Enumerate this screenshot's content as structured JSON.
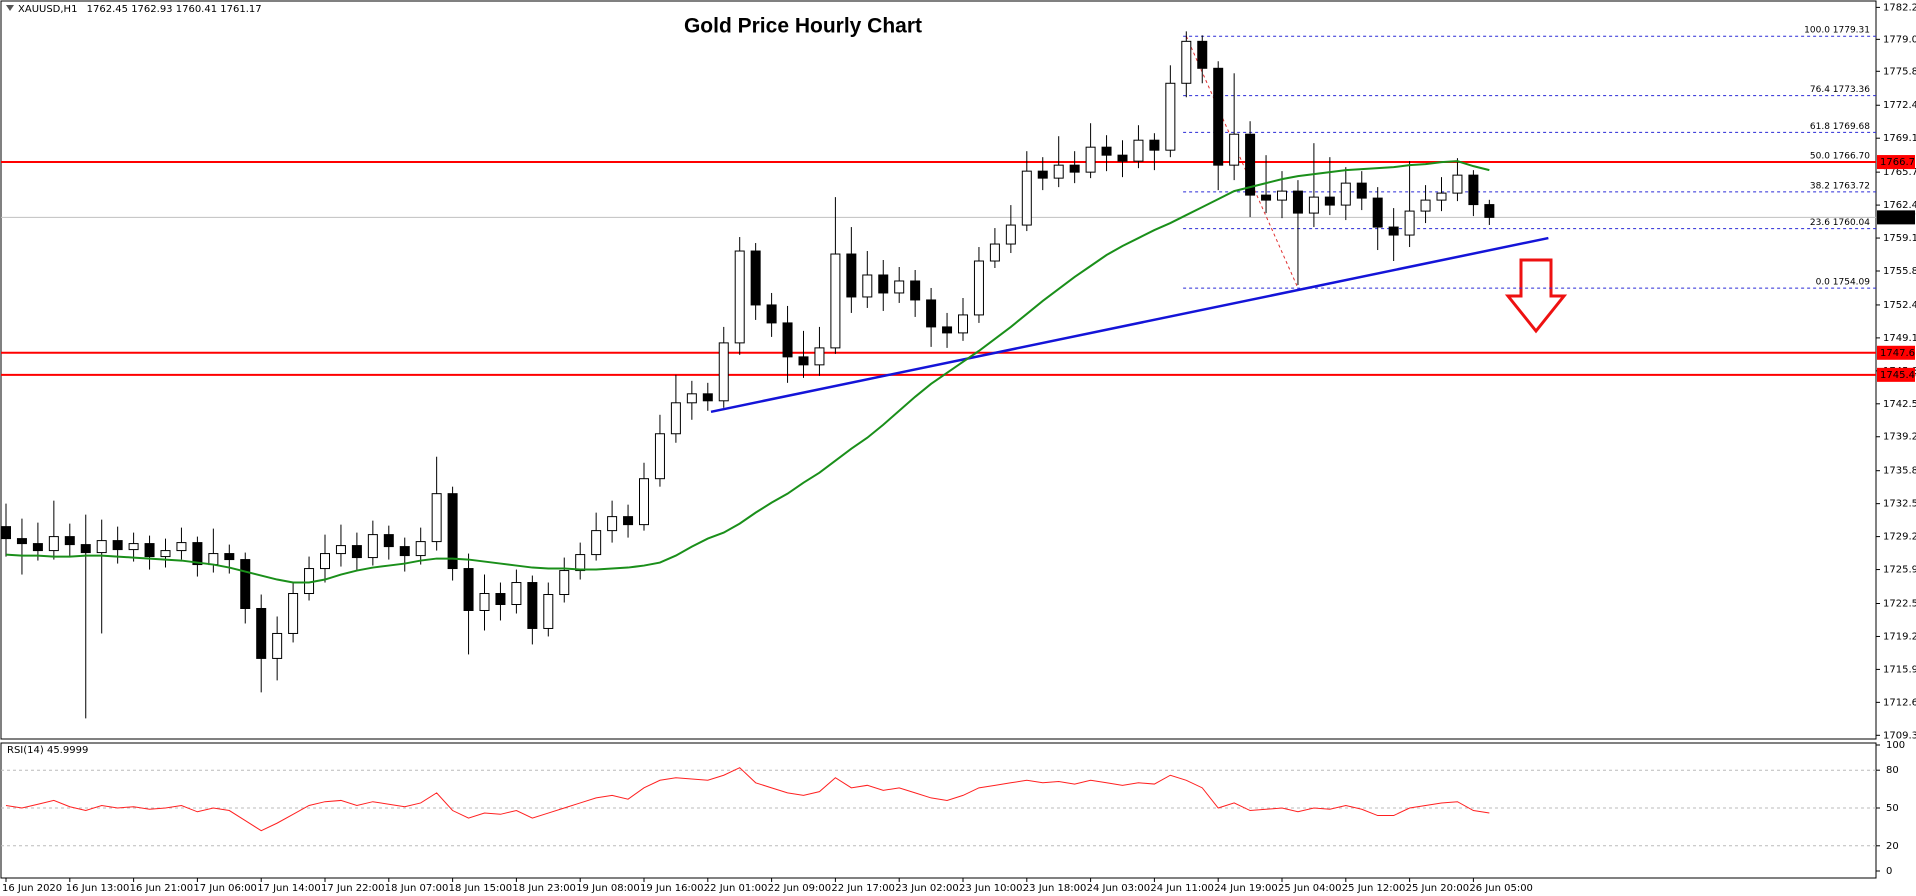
{
  "chart_data": {
    "type": "candlestick",
    "title": "Gold Price Hourly Chart",
    "symbol": "XAUUSD,H1",
    "ohlc": [
      1762.45,
      1762.93,
      1760.41,
      1761.17
    ],
    "bull_color": "#ffffff",
    "bear_color": "#000000",
    "candles": [
      [
        1730.2,
        1732.5,
        1727.2,
        1729
      ],
      [
        1729,
        1731,
        1725.4,
        1728.5
      ],
      [
        1728.5,
        1730.6,
        1726.8,
        1727.8
      ],
      [
        1727.8,
        1732.8,
        1726.9,
        1729.2
      ],
      [
        1729.2,
        1730.5,
        1727.2,
        1728.4
      ],
      [
        1728.4,
        1731.4,
        1711,
        1727.6
      ],
      [
        1727.6,
        1730.9,
        1719.5,
        1728.8
      ],
      [
        1728.8,
        1730.2,
        1726.5,
        1727.9
      ],
      [
        1727.9,
        1729.6,
        1726.7,
        1728.5
      ],
      [
        1728.5,
        1729.3,
        1725.9,
        1727.2
      ],
      [
        1727.2,
        1729,
        1726.1,
        1727.8
      ],
      [
        1727.8,
        1730.1,
        1726.9,
        1728.6
      ],
      [
        1728.6,
        1729.2,
        1725.2,
        1726.4
      ],
      [
        1726.4,
        1730,
        1725.6,
        1727.5
      ],
      [
        1727.5,
        1728.4,
        1725.5,
        1726.9
      ],
      [
        1726.9,
        1727.6,
        1720.5,
        1722
      ],
      [
        1722,
        1723.4,
        1713.6,
        1717
      ],
      [
        1717,
        1721.2,
        1714.8,
        1719.5
      ],
      [
        1719.5,
        1724.6,
        1718.6,
        1723.5
      ],
      [
        1723.5,
        1727.2,
        1722.8,
        1726
      ],
      [
        1726,
        1729.4,
        1724.6,
        1727.5
      ],
      [
        1727.5,
        1730.4,
        1726.2,
        1728.3
      ],
      [
        1728.3,
        1729.6,
        1725.8,
        1727.1
      ],
      [
        1727.1,
        1730.8,
        1726.3,
        1729.4
      ],
      [
        1729.4,
        1730.3,
        1726.9,
        1728.2
      ],
      [
        1728.2,
        1729.1,
        1725.7,
        1727.3
      ],
      [
        1727.3,
        1730.1,
        1726.4,
        1728.7
      ],
      [
        1728.7,
        1737.2,
        1727.8,
        1733.5
      ],
      [
        1733.5,
        1734.2,
        1724.8,
        1726
      ],
      [
        1726,
        1727.5,
        1717.4,
        1721.8
      ],
      [
        1721.8,
        1725.4,
        1719.8,
        1723.5
      ],
      [
        1723.5,
        1724.6,
        1720.8,
        1722.4
      ],
      [
        1722.4,
        1725.9,
        1721.5,
        1724.6
      ],
      [
        1724.6,
        1725.3,
        1718.4,
        1720
      ],
      [
        1720,
        1724.6,
        1719.2,
        1723.4
      ],
      [
        1723.4,
        1727.1,
        1722.6,
        1725.8
      ],
      [
        1725.8,
        1728.6,
        1724.9,
        1727.4
      ],
      [
        1727.4,
        1731.6,
        1726.8,
        1729.8
      ],
      [
        1729.8,
        1732.8,
        1728.6,
        1731.2
      ],
      [
        1731.2,
        1732.4,
        1729.1,
        1730.4
      ],
      [
        1730.4,
        1736.6,
        1729.8,
        1735
      ],
      [
        1735,
        1741.4,
        1734.2,
        1739.5
      ],
      [
        1739.5,
        1745.4,
        1738.6,
        1742.6
      ],
      [
        1742.6,
        1744.8,
        1740.9,
        1743.5
      ],
      [
        1743.5,
        1744.6,
        1741.8,
        1742.8
      ],
      [
        1742.8,
        1750.2,
        1742.1,
        1748.6
      ],
      [
        1748.6,
        1759.2,
        1747.4,
        1757.8
      ],
      [
        1757.8,
        1758.6,
        1750.9,
        1752.4
      ],
      [
        1752.4,
        1753.6,
        1749.2,
        1750.6
      ],
      [
        1750.6,
        1752.3,
        1744.6,
        1747.2
      ],
      [
        1747.2,
        1749.8,
        1745.1,
        1746.4
      ],
      [
        1746.4,
        1750.2,
        1745.3,
        1748.1
      ],
      [
        1748.1,
        1763.2,
        1747.5,
        1757.5
      ],
      [
        1757.5,
        1760.2,
        1751.6,
        1753.2
      ],
      [
        1753.2,
        1757.8,
        1752.1,
        1755.4
      ],
      [
        1755.4,
        1756.9,
        1751.8,
        1753.6
      ],
      [
        1753.6,
        1756.2,
        1752.6,
        1754.8
      ],
      [
        1754.8,
        1755.9,
        1751.2,
        1752.9
      ],
      [
        1752.9,
        1754.1,
        1748.2,
        1750.2
      ],
      [
        1750.2,
        1751.6,
        1748.1,
        1749.6
      ],
      [
        1749.6,
        1753.1,
        1748.8,
        1751.4
      ],
      [
        1751.4,
        1758.2,
        1750.6,
        1756.8
      ],
      [
        1756.8,
        1760.1,
        1756.1,
        1758.5
      ],
      [
        1758.5,
        1762.4,
        1757.6,
        1760.4
      ],
      [
        1760.4,
        1767.8,
        1759.8,
        1765.8
      ],
      [
        1765.8,
        1767.2,
        1763.9,
        1765.1
      ],
      [
        1765.1,
        1769.3,
        1764.2,
        1766.4
      ],
      [
        1766.4,
        1767.8,
        1764.6,
        1765.7
      ],
      [
        1765.7,
        1770.6,
        1765.1,
        1768.2
      ],
      [
        1768.2,
        1769.4,
        1765.8,
        1767.4
      ],
      [
        1767.4,
        1768.9,
        1765.2,
        1766.8
      ],
      [
        1766.8,
        1770.4,
        1766.1,
        1768.9
      ],
      [
        1768.9,
        1769.6,
        1765.9,
        1767.9
      ],
      [
        1767.9,
        1776.4,
        1767.2,
        1774.6
      ],
      [
        1774.6,
        1779.8,
        1773.2,
        1778.8
      ],
      [
        1778.8,
        1779.4,
        1774.6,
        1776.1
      ],
      [
        1776.1,
        1776.8,
        1763.9,
        1766.4
      ],
      [
        1766.4,
        1775.6,
        1764.9,
        1769.5
      ],
      [
        1769.5,
        1770.8,
        1761.2,
        1763.4
      ],
      [
        1763.4,
        1767.4,
        1761.6,
        1762.9
      ],
      [
        1762.9,
        1765.8,
        1761.1,
        1763.8
      ],
      [
        1763.8,
        1764.9,
        1754.4,
        1761.6
      ],
      [
        1761.6,
        1768.6,
        1760.2,
        1763.2
      ],
      [
        1763.2,
        1767.2,
        1761.4,
        1762.4
      ],
      [
        1762.4,
        1766.2,
        1760.9,
        1764.6
      ],
      [
        1764.6,
        1765.8,
        1761.9,
        1763.1
      ],
      [
        1763.1,
        1764.2,
        1757.9,
        1760.2
      ],
      [
        1760.2,
        1762.1,
        1756.8,
        1759.4
      ],
      [
        1759.4,
        1766.8,
        1758.2,
        1761.8
      ],
      [
        1761.8,
        1764.4,
        1760.6,
        1762.9
      ],
      [
        1762.9,
        1765.2,
        1761.8,
        1763.6
      ],
      [
        1763.6,
        1767.1,
        1762.8,
        1765.4
      ],
      [
        1765.4,
        1765.9,
        1761.3,
        1762.45
      ],
      [
        1762.45,
        1762.93,
        1760.41,
        1761.17
      ]
    ],
    "ma": {
      "color": "#1a8f1a",
      "values": [
        1727.4,
        1727.3,
        1727.3,
        1727.2,
        1727.2,
        1727.3,
        1727.3,
        1727.2,
        1727.1,
        1727,
        1726.9,
        1726.8,
        1726.6,
        1726.4,
        1726.1,
        1725.7,
        1725.3,
        1724.9,
        1724.6,
        1724.6,
        1724.9,
        1725.4,
        1725.8,
        1726.1,
        1726.3,
        1726.5,
        1726.8,
        1727,
        1727,
        1726.9,
        1726.7,
        1726.5,
        1726.3,
        1726.1,
        1726,
        1726,
        1725.9,
        1725.9,
        1726,
        1726.1,
        1726.3,
        1726.6,
        1727.3,
        1728.2,
        1729,
        1729.6,
        1730.5,
        1731.6,
        1732.6,
        1733.5,
        1734.6,
        1735.6,
        1736.8,
        1738,
        1739.1,
        1740.4,
        1741.8,
        1743.2,
        1744.5,
        1745.6,
        1746.7,
        1747.8,
        1749,
        1750.2,
        1751.5,
        1752.8,
        1754,
        1755.2,
        1756.3,
        1757.4,
        1758.3,
        1759.1,
        1759.9,
        1760.6,
        1761.4,
        1762.2,
        1763,
        1763.8,
        1764.2,
        1764.6,
        1765,
        1765.3,
        1765.5,
        1765.7,
        1765.9,
        1766,
        1766.1,
        1766.2,
        1766.4,
        1766.5,
        1766.7,
        1766.8,
        1766.3,
        1765.9
      ]
    },
    "ylim": [
      1708.93,
      1782.94
    ],
    "yticks": [
      {
        "value": 1782.2,
        "label": "1782.20"
      },
      {
        "value": 1779.0,
        "label": "1779.00"
      },
      {
        "value": 1775.8,
        "label": "1775.80"
      },
      {
        "value": 1772.4,
        "label": "1772.40"
      },
      {
        "value": 1769.1,
        "label": "1769.10"
      },
      {
        "value": 1765.7,
        "label": "1765.70"
      },
      {
        "value": 1762.4,
        "label": "1762.40"
      },
      {
        "value": 1759.1,
        "label": "1759.10"
      },
      {
        "value": 1755.8,
        "label": "1755.80"
      },
      {
        "value": 1752.4,
        "label": "1752.40"
      },
      {
        "value": 1749.1,
        "label": "1749.10"
      },
      {
        "value": 1745.8,
        "label": "1745.80"
      },
      {
        "value": 1742.5,
        "label": "1742.50"
      },
      {
        "value": 1739.2,
        "label": "1739.20"
      },
      {
        "value": 1735.8,
        "label": "1735.80"
      },
      {
        "value": 1732.5,
        "label": "1732.50"
      },
      {
        "value": 1729.2,
        "label": "1729.20"
      },
      {
        "value": 1725.9,
        "label": "1725.90"
      },
      {
        "value": 1722.5,
        "label": "1722.50"
      },
      {
        "value": 1719.2,
        "label": "1719.20"
      },
      {
        "value": 1715.9,
        "label": "1715.90"
      },
      {
        "value": 1712.6,
        "label": "1712.60"
      },
      {
        "value": 1709.3,
        "label": "1709.30"
      }
    ],
    "x_labels": [
      "16 Jun 2020",
      "16 Jun 13:00",
      "16 Jun 21:00",
      "17 Jun 06:00",
      "17 Jun 14:00",
      "17 Jun 22:00",
      "18 Jun 07:00",
      "18 Jun 15:00",
      "18 Jun 23:00",
      "19 Jun 08:00",
      "19 Jun 16:00",
      "22 Jun 01:00",
      "22 Jun 09:00",
      "22 Jun 17:00",
      "23 Jun 02:00",
      "23 Jun 10:00",
      "23 Jun 18:00",
      "24 Jun 03:00",
      "24 Jun 11:00",
      "24 Jun 19:00",
      "25 Jun 04:00",
      "25 Jun 12:00",
      "25 Jun 20:00",
      "26 Jun 05:00"
    ],
    "levels": {
      "color": "#ff0000",
      "items": [
        {
          "value": 1766.71,
          "label": "1766.71"
        },
        {
          "value": 1747.61,
          "label": "1747.61"
        },
        {
          "value": 1745.4,
          "label": "1745.40"
        }
      ]
    },
    "current": {
      "value": 1761.17,
      "label": "1761.17",
      "color": "#c0c0c0"
    },
    "fib": {
      "color": "#2b2bd6",
      "swing_color": "#e03030",
      "levels": [
        {
          "label": "100.0 1779.31",
          "value": 1779.31
        },
        {
          "label": "76.4 1773.36",
          "value": 1773.36
        },
        {
          "label": "61.8 1769.68",
          "value": 1769.68
        },
        {
          "label": "50.0 1766.70",
          "value": 1766.7
        },
        {
          "label": "38.2 1763.72",
          "value": 1763.72
        },
        {
          "label": "23.6 1760.04",
          "value": 1760.04
        },
        {
          "label": "0.0 1754.09",
          "value": 1754.09
        }
      ]
    },
    "trendline": {
      "color": "#1414d8",
      "points": [
        [
          44.2,
          1741.7
        ],
        [
          96.7,
          1759.1
        ]
      ]
    },
    "rsi": {
      "label": "RSI(14) 45.9999",
      "color": "#ff2020",
      "ylim": [
        0,
        100
      ],
      "yticks": [
        0,
        20,
        50,
        80,
        100
      ],
      "values": [
        52,
        50,
        53,
        56,
        51,
        48,
        52,
        50,
        51,
        49,
        50,
        52,
        47,
        50,
        48,
        40,
        32,
        38,
        45,
        52,
        55,
        56,
        52,
        55,
        53,
        51,
        54,
        62,
        48,
        42,
        46,
        45,
        48,
        42,
        46,
        50,
        54,
        58,
        60,
        57,
        66,
        72,
        74,
        73,
        72,
        76,
        82,
        70,
        66,
        62,
        60,
        63,
        74,
        66,
        68,
        64,
        66,
        62,
        58,
        56,
        60,
        66,
        68,
        70,
        72,
        70,
        71,
        69,
        72,
        70,
        68,
        70,
        69,
        76,
        72,
        66,
        50,
        54,
        48,
        49,
        50,
        47,
        50,
        49,
        52,
        49,
        44,
        44,
        50,
        52,
        54,
        55,
        48,
        45.9999
      ]
    }
  }
}
